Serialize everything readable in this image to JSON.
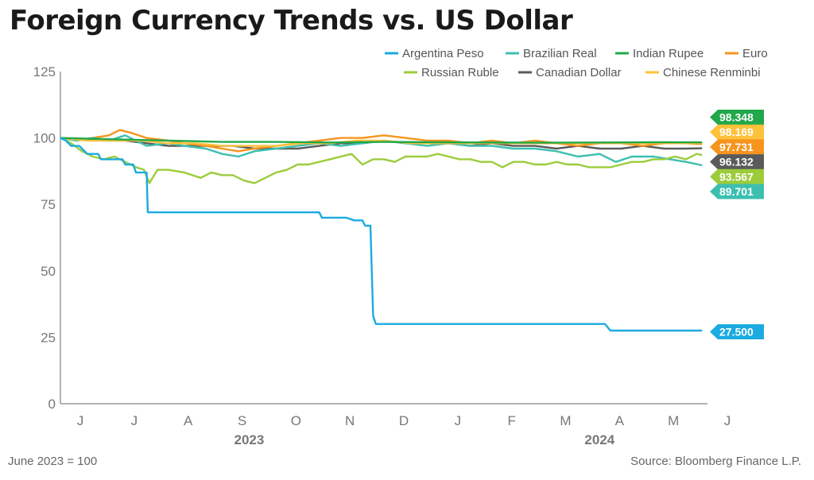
{
  "title": "Foreign Currency Trends vs. US Dollar",
  "footnote": "June 2023 = 100",
  "source": "Source: Bloomberg Finance L.P.",
  "chart_data": {
    "type": "line",
    "y_ticks": [
      0,
      25,
      50,
      75,
      100,
      125
    ],
    "ylim": [
      0,
      125
    ],
    "x_month_labels": [
      "J",
      "J",
      "A",
      "S",
      "O",
      "N",
      "D",
      "J",
      "F",
      "M",
      "A",
      "M",
      "J"
    ],
    "year_labels": [
      "2023",
      "2024"
    ],
    "legend_placement": "top-right",
    "grid": false,
    "series": [
      {
        "name": "Argentina Peso",
        "color": "#1aabe0",
        "end_label": "27.500",
        "points": [
          [
            0,
            100
          ],
          [
            0.1,
            99
          ],
          [
            0.2,
            97
          ],
          [
            0.35,
            97
          ],
          [
            0.4,
            96
          ],
          [
            0.5,
            94
          ],
          [
            0.7,
            94
          ],
          [
            0.75,
            92
          ],
          [
            0.9,
            92
          ],
          [
            1.15,
            92
          ],
          [
            1.2,
            90
          ],
          [
            1.35,
            90
          ],
          [
            1.4,
            87
          ],
          [
            1.6,
            87
          ],
          [
            1.62,
            72
          ],
          [
            2,
            72
          ],
          [
            3,
            72
          ],
          [
            4,
            72
          ],
          [
            4.8,
            72
          ],
          [
            4.85,
            70
          ],
          [
            5,
            70
          ],
          [
            5.3,
            70
          ],
          [
            5.45,
            69
          ],
          [
            5.6,
            69
          ],
          [
            5.65,
            67
          ],
          [
            5.75,
            67
          ],
          [
            5.8,
            33
          ],
          [
            5.85,
            30
          ],
          [
            6,
            30
          ],
          [
            7,
            30
          ],
          [
            8,
            30
          ],
          [
            9,
            30
          ],
          [
            10.1,
            30
          ],
          [
            10.2,
            27.5
          ],
          [
            11,
            27.5
          ],
          [
            11.9,
            27.5
          ]
        ]
      },
      {
        "name": "Brazilian Real",
        "color": "#3dbfb0",
        "end_label": "89.701",
        "points": [
          [
            0,
            100
          ],
          [
            0.3,
            99
          ],
          [
            0.6,
            100
          ],
          [
            0.9,
            99
          ],
          [
            1.2,
            101
          ],
          [
            1.4,
            99
          ],
          [
            1.6,
            97
          ],
          [
            2,
            98
          ],
          [
            2.3,
            97
          ],
          [
            2.7,
            96
          ],
          [
            3,
            94
          ],
          [
            3.3,
            93
          ],
          [
            3.6,
            95
          ],
          [
            4,
            96
          ],
          [
            4.4,
            97
          ],
          [
            4.8,
            98
          ],
          [
            5.2,
            97
          ],
          [
            5.6,
            98
          ],
          [
            6,
            99
          ],
          [
            6.4,
            98
          ],
          [
            6.8,
            97
          ],
          [
            7.2,
            98
          ],
          [
            7.6,
            97
          ],
          [
            8,
            97
          ],
          [
            8.4,
            96
          ],
          [
            8.8,
            96
          ],
          [
            9.2,
            95
          ],
          [
            9.6,
            93
          ],
          [
            10,
            94
          ],
          [
            10.3,
            91
          ],
          [
            10.6,
            93
          ],
          [
            11,
            93
          ],
          [
            11.3,
            92
          ],
          [
            11.6,
            91
          ],
          [
            11.9,
            89.7
          ]
        ]
      },
      {
        "name": "Indian Rupee",
        "color": "#21a84a",
        "end_label": "98.348",
        "points": [
          [
            0,
            100
          ],
          [
            1,
            99.5
          ],
          [
            2,
            99
          ],
          [
            3,
            98.5
          ],
          [
            4,
            98.5
          ],
          [
            5,
            98.3
          ],
          [
            6,
            98.5
          ],
          [
            7,
            98.4
          ],
          [
            8,
            98.3
          ],
          [
            9,
            98.2
          ],
          [
            10,
            98.3
          ],
          [
            11,
            98.4
          ],
          [
            11.9,
            98.35
          ]
        ]
      },
      {
        "name": "Euro",
        "color": "#f7941d",
        "end_label": "97.731",
        "points": [
          [
            0,
            100
          ],
          [
            0.3,
            99
          ],
          [
            0.6,
            100
          ],
          [
            0.9,
            101
          ],
          [
            1.1,
            103
          ],
          [
            1.3,
            102
          ],
          [
            1.6,
            100
          ],
          [
            2,
            99
          ],
          [
            2.3,
            98
          ],
          [
            2.7,
            97
          ],
          [
            3,
            96
          ],
          [
            3.3,
            95
          ],
          [
            3.6,
            96
          ],
          [
            4,
            97
          ],
          [
            4.4,
            98
          ],
          [
            4.8,
            99
          ],
          [
            5.2,
            100
          ],
          [
            5.6,
            100
          ],
          [
            6,
            101
          ],
          [
            6.4,
            100
          ],
          [
            6.8,
            99
          ],
          [
            7.2,
            99
          ],
          [
            7.6,
            98
          ],
          [
            8,
            99
          ],
          [
            8.4,
            98
          ],
          [
            8.8,
            99
          ],
          [
            9.2,
            98
          ],
          [
            9.6,
            97
          ],
          [
            10,
            98
          ],
          [
            10.4,
            98
          ],
          [
            10.8,
            97
          ],
          [
            11.2,
            98
          ],
          [
            11.6,
            98
          ],
          [
            11.9,
            97.7
          ]
        ]
      },
      {
        "name": "Russian Ruble",
        "color": "#9ccc3c",
        "end_label": "93.567",
        "points": [
          [
            0,
            100
          ],
          [
            0.2,
            98
          ],
          [
            0.4,
            95
          ],
          [
            0.6,
            93
          ],
          [
            0.8,
            92
          ],
          [
            1,
            93
          ],
          [
            1.2,
            91
          ],
          [
            1.4,
            89
          ],
          [
            1.55,
            88
          ],
          [
            1.65,
            83
          ],
          [
            1.8,
            88
          ],
          [
            2,
            88
          ],
          [
            2.3,
            87
          ],
          [
            2.6,
            85
          ],
          [
            2.8,
            87
          ],
          [
            3,
            86
          ],
          [
            3.2,
            86
          ],
          [
            3.4,
            84
          ],
          [
            3.6,
            83
          ],
          [
            3.8,
            85
          ],
          [
            4,
            87
          ],
          [
            4.2,
            88
          ],
          [
            4.4,
            90
          ],
          [
            4.6,
            90
          ],
          [
            4.8,
            91
          ],
          [
            5,
            92
          ],
          [
            5.2,
            93
          ],
          [
            5.4,
            94
          ],
          [
            5.6,
            90
          ],
          [
            5.8,
            92
          ],
          [
            6,
            92
          ],
          [
            6.2,
            91
          ],
          [
            6.4,
            93
          ],
          [
            6.6,
            93
          ],
          [
            6.8,
            93
          ],
          [
            7,
            94
          ],
          [
            7.2,
            93
          ],
          [
            7.4,
            92
          ],
          [
            7.6,
            92
          ],
          [
            7.8,
            91
          ],
          [
            8,
            91
          ],
          [
            8.2,
            89
          ],
          [
            8.4,
            91
          ],
          [
            8.6,
            91
          ],
          [
            8.8,
            90
          ],
          [
            9,
            90
          ],
          [
            9.2,
            91
          ],
          [
            9.4,
            90
          ],
          [
            9.6,
            90
          ],
          [
            9.8,
            89
          ],
          [
            10,
            89
          ],
          [
            10.2,
            89
          ],
          [
            10.4,
            90
          ],
          [
            10.6,
            91
          ],
          [
            10.8,
            91
          ],
          [
            11,
            92
          ],
          [
            11.2,
            92
          ],
          [
            11.4,
            93
          ],
          [
            11.6,
            92
          ],
          [
            11.8,
            94
          ],
          [
            11.9,
            93.6
          ]
        ]
      },
      {
        "name": "Canadian Dollar",
        "color": "#5a5a5a",
        "end_label": "96.132",
        "points": [
          [
            0,
            100
          ],
          [
            0.4,
            99.5
          ],
          [
            0.8,
            99
          ],
          [
            1.2,
            99
          ],
          [
            1.6,
            98
          ],
          [
            2,
            97
          ],
          [
            2.4,
            97
          ],
          [
            2.8,
            97
          ],
          [
            3.2,
            97
          ],
          [
            3.6,
            96
          ],
          [
            4,
            96
          ],
          [
            4.4,
            96
          ],
          [
            4.8,
            97
          ],
          [
            5.2,
            98
          ],
          [
            5.6,
            98
          ],
          [
            6,
            99
          ],
          [
            6.4,
            98
          ],
          [
            6.8,
            98
          ],
          [
            7.2,
            98
          ],
          [
            7.6,
            97
          ],
          [
            8,
            98
          ],
          [
            8.4,
            97
          ],
          [
            8.8,
            97
          ],
          [
            9.2,
            96
          ],
          [
            9.6,
            97
          ],
          [
            10,
            96
          ],
          [
            10.4,
            96
          ],
          [
            10.8,
            97
          ],
          [
            11.2,
            96
          ],
          [
            11.6,
            96
          ],
          [
            11.9,
            96.1
          ]
        ]
      },
      {
        "name": "Chinese Renminbi",
        "color": "#fdc13a",
        "end_label": "98.169",
        "points": [
          [
            0,
            100
          ],
          [
            0.5,
            99
          ],
          [
            1,
            99
          ],
          [
            1.5,
            99
          ],
          [
            2,
            98
          ],
          [
            2.5,
            98
          ],
          [
            3,
            97
          ],
          [
            3.5,
            97
          ],
          [
            4,
            97
          ],
          [
            4.5,
            98
          ],
          [
            5,
            98
          ],
          [
            5.5,
            99
          ],
          [
            6,
            99
          ],
          [
            6.5,
            98
          ],
          [
            7,
            98
          ],
          [
            7.5,
            98
          ],
          [
            8,
            98
          ],
          [
            8.5,
            98
          ],
          [
            9,
            98
          ],
          [
            9.5,
            98
          ],
          [
            10,
            98
          ],
          [
            10.5,
            98
          ],
          [
            11,
            98
          ],
          [
            11.5,
            98
          ],
          [
            11.9,
            98.2
          ]
        ]
      }
    ]
  }
}
